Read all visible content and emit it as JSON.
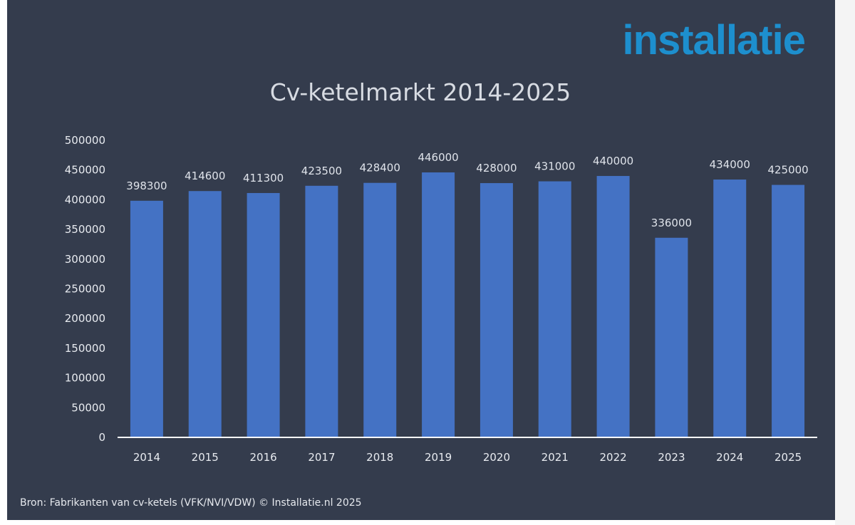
{
  "logo": {
    "text": "installatie"
  },
  "source": "Bron: Fabrikanten van cv-ketels (VFK/NVI/VDW) © Installatie.nl 2025",
  "colors": {
    "background": "#343c4d",
    "bar": "#4472c4",
    "axis": "#ffffff",
    "logo": "#1d8fce"
  },
  "chart_data": {
    "type": "bar",
    "title": "Cv-ketelmarkt 2014-2025",
    "xlabel": "",
    "ylabel": "",
    "categories": [
      "2014",
      "2015",
      "2016",
      "2017",
      "2018",
      "2019",
      "2020",
      "2021",
      "2022",
      "2023",
      "2024",
      "2025"
    ],
    "values": [
      398300,
      414600,
      411300,
      423500,
      428400,
      446000,
      428000,
      431000,
      440000,
      336000,
      434000,
      425000
    ],
    "data_labels": [
      "398300",
      "414600",
      "411300",
      "423500",
      "428400",
      "446000",
      "428000",
      "431000",
      "440000",
      "336000",
      "434000",
      "425000"
    ],
    "ylim": [
      0,
      500000
    ],
    "yticks": [
      0,
      50000,
      100000,
      150000,
      200000,
      250000,
      300000,
      350000,
      400000,
      450000,
      500000
    ],
    "ytick_labels": [
      "0",
      "50000",
      "100000",
      "150000",
      "200000",
      "250000",
      "300000",
      "350000",
      "400000",
      "450000",
      "500000"
    ],
    "grid": false,
    "legend": "none"
  }
}
